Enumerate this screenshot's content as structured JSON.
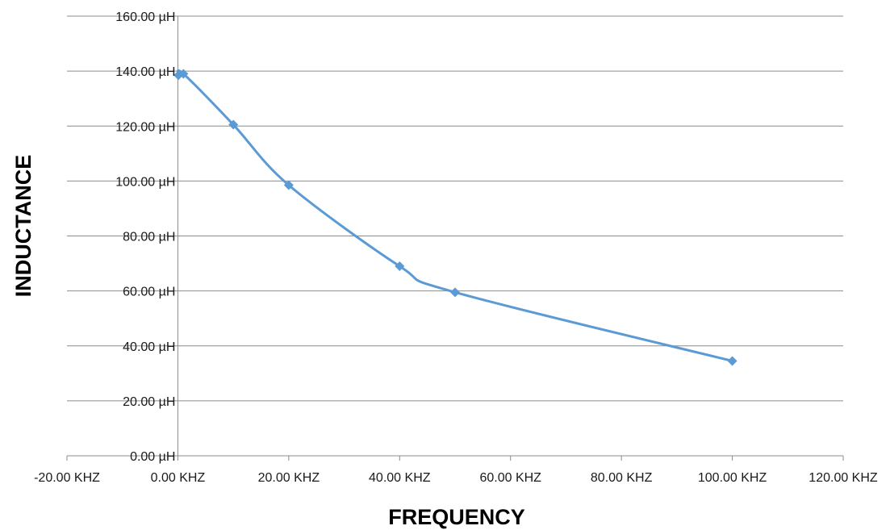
{
  "chart_data": {
    "type": "scatter",
    "title": "",
    "xlabel": "FREQUENCY",
    "ylabel": "INDUCTANCE",
    "xlim": [
      -20,
      120
    ],
    "ylim": [
      0,
      160
    ],
    "x_ticks": [
      -20,
      0,
      20,
      40,
      60,
      80,
      100,
      120
    ],
    "y_ticks": [
      0,
      20,
      40,
      60,
      80,
      100,
      120,
      140,
      160
    ],
    "x_tick_labels": [
      "-20.00 KHZ",
      "0.00 KHZ",
      "20.00 KHZ",
      "40.00 KHZ",
      "60.00 KHZ",
      "80.00 KHZ",
      "100.00 KHZ",
      "120.00 KHZ"
    ],
    "y_tick_labels": [
      "0.00 µH",
      "20.00 µH",
      "40.00 µH",
      "60.00 µH",
      "80.00 µH",
      "100.00 µH",
      "120.00 µH",
      "140.00 µH",
      "160.00 µH"
    ],
    "grid": "horizontal",
    "legend": "none",
    "smooth_line": true,
    "marker": "diamond",
    "series": [
      {
        "color": "#5b9bd5",
        "x": [
          0.1,
          1,
          10,
          20,
          40,
          50,
          100
        ],
        "y": [
          138.5,
          139,
          120.5,
          98.5,
          69,
          59.5,
          34.5
        ]
      }
    ]
  }
}
